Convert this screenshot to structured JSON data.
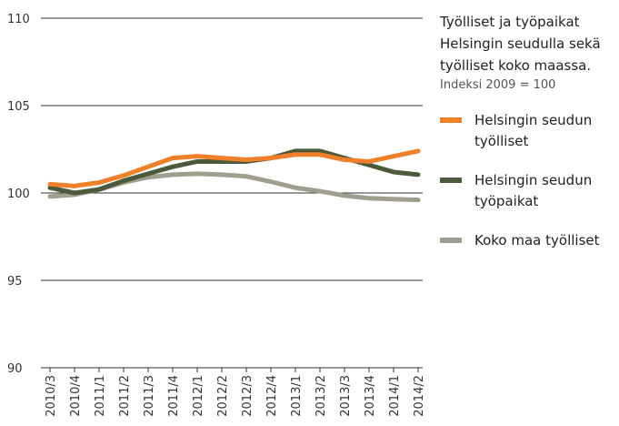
{
  "chart_data": {
    "type": "line",
    "title": "Työlliset ja työpaikat Helsingin seudulla sekä työlliset koko maassa.",
    "subtitle": "Indeksi 2009 = 100",
    "categories": [
      "2010/3",
      "2010/4",
      "2011/1",
      "2011/2",
      "2011/3",
      "2011/4",
      "2012/1",
      "2012/2",
      "2012/3",
      "2012/4",
      "2013/1",
      "2013/2",
      "2013/3",
      "2013/4",
      "2014/1",
      "2014/2"
    ],
    "series": [
      {
        "name": "Helsingin seudun työlliset",
        "color": "#f07f2a",
        "values": [
          100.5,
          100.4,
          100.6,
          101.0,
          101.5,
          102.0,
          102.1,
          102.0,
          101.9,
          102.0,
          102.2,
          102.2,
          101.9,
          101.8,
          102.1,
          102.4
        ]
      },
      {
        "name": "Helsingin seudun työpaikat",
        "color": "#4a5a3a",
        "values": [
          100.3,
          100.0,
          100.2,
          100.7,
          101.1,
          101.5,
          101.8,
          101.8,
          101.8,
          102.0,
          102.4,
          102.4,
          102.0,
          101.6,
          101.2,
          101.05
        ]
      },
      {
        "name": "Koko maa työlliset",
        "color": "#a09e8c",
        "values": [
          99.8,
          99.9,
          100.2,
          100.6,
          100.9,
          101.05,
          101.1,
          101.05,
          100.95,
          100.65,
          100.3,
          100.1,
          99.85,
          99.7,
          99.65,
          99.6
        ]
      }
    ],
    "ylim": [
      90,
      110
    ],
    "yticks": [
      90,
      95,
      100,
      105,
      110
    ],
    "grid": true
  }
}
